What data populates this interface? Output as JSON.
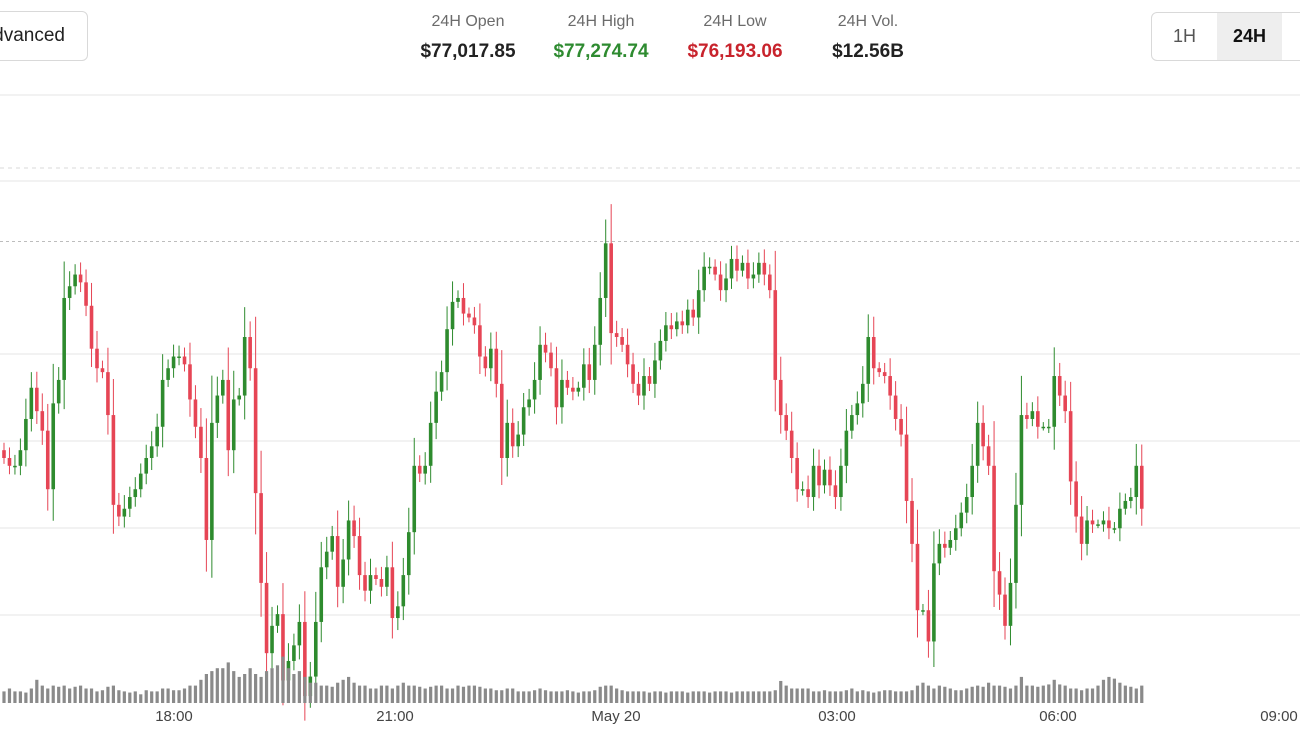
{
  "header": {
    "advanced_label": "Advanced",
    "stats": [
      {
        "label": "24H Open",
        "value": "$77,017.85",
        "color": "#222222"
      },
      {
        "label": "24H High",
        "value": "$77,274.74",
        "color": "#2e8b30"
      },
      {
        "label": "24H Low",
        "value": "$76,193.06",
        "color": "#c8232c"
      },
      {
        "label": "24H Vol.",
        "value": "$12.56B",
        "color": "#222222"
      }
    ],
    "ranges": [
      {
        "label": "1H",
        "active": false
      },
      {
        "label": "24H",
        "active": true
      }
    ]
  },
  "colors": {
    "up": "#2e8b2e",
    "down": "#e64555",
    "volume": "#8a8a8a",
    "grid": "#e6e6e6"
  },
  "chart_data": {
    "type": "candlestick",
    "x_axis_labels": [
      "18:00",
      "21:00",
      "May 20",
      "03:00",
      "06:00",
      "09:00"
    ],
    "y_range": [
      76100,
      77650
    ],
    "reference_lines": [
      77274.74
    ],
    "candles_per_hour": 12,
    "price_closes": [
      76720,
      76700,
      76700,
      76740,
      76820,
      76900,
      76840,
      76790,
      76640,
      76860,
      76920,
      77130,
      77160,
      77190,
      77170,
      77110,
      77000,
      76950,
      76940,
      76830,
      76600,
      76570,
      76590,
      76620,
      76640,
      76680,
      76720,
      76750,
      76800,
      76920,
      76950,
      76980,
      76980,
      76960,
      76870,
      76800,
      76720,
      76510,
      76810,
      76880,
      76920,
      76740,
      76870,
      76880,
      77030,
      76950,
      76630,
      76400,
      76220,
      76290,
      76320,
      76150,
      76200,
      76240,
      76300,
      76110,
      76160,
      76300,
      76440,
      76480,
      76520,
      76390,
      76460,
      76560,
      76520,
      76420,
      76380,
      76420,
      76410,
      76390,
      76440,
      76310,
      76340,
      76420,
      76530,
      76700,
      76680,
      76700,
      76810,
      76890,
      76940,
      77050,
      77120,
      77130,
      77090,
      77080,
      77060,
      76980,
      76950,
      77000,
      76910,
      76720,
      76810,
      76750,
      76780,
      76850,
      76870,
      76920,
      77010,
      76990,
      76950,
      76850,
      76920,
      76900,
      76890,
      76900,
      76960,
      76920,
      77010,
      77130,
      77270,
      77040,
      77030,
      77010,
      76960,
      76910,
      76880,
      76930,
      76910,
      76970,
      77020,
      77060,
      77050,
      77070,
      77060,
      77100,
      77080,
      77150,
      77210,
      77210,
      77190,
      77150,
      77180,
      77230,
      77200,
      77220,
      77180,
      77190,
      77220,
      77190,
      77150,
      76920,
      76830,
      76790,
      76720,
      76640,
      76640,
      76620,
      76700,
      76650,
      76690,
      76650,
      76620,
      76700,
      76790,
      76830,
      76860,
      76910,
      77030,
      76950,
      76940,
      76930,
      76880,
      76820,
      76780,
      76610,
      76500,
      76330,
      76330,
      76250,
      76450,
      76500,
      76490,
      76510,
      76540,
      76580,
      76620,
      76700,
      76810,
      76750,
      76700,
      76430,
      76370,
      76290,
      76400,
      76600,
      76830,
      76820,
      76840,
      76800,
      76800,
      76800,
      76930,
      76880,
      76840,
      76660,
      76570,
      76500,
      76560,
      76550,
      76550,
      76560,
      76540,
      76540,
      76590,
      76610,
      76620,
      76700,
      76590
    ],
    "volume_levels": [
      0.2,
      0.25,
      0.2,
      0.2,
      0.18,
      0.25,
      0.4,
      0.3,
      0.25,
      0.3,
      0.28,
      0.3,
      0.25,
      0.28,
      0.3,
      0.25,
      0.25,
      0.2,
      0.22,
      0.28,
      0.3,
      0.22,
      0.2,
      0.18,
      0.2,
      0.15,
      0.22,
      0.2,
      0.2,
      0.25,
      0.25,
      0.22,
      0.22,
      0.25,
      0.3,
      0.3,
      0.4,
      0.5,
      0.55,
      0.6,
      0.6,
      0.7,
      0.55,
      0.45,
      0.5,
      0.6,
      0.5,
      0.45,
      0.55,
      0.6,
      0.65,
      0.8,
      0.6,
      0.5,
      0.55,
      0.45,
      0.35,
      0.35,
      0.3,
      0.3,
      0.28,
      0.35,
      0.4,
      0.45,
      0.35,
      0.3,
      0.3,
      0.25,
      0.25,
      0.3,
      0.3,
      0.25,
      0.3,
      0.35,
      0.3,
      0.3,
      0.28,
      0.25,
      0.28,
      0.3,
      0.3,
      0.25,
      0.25,
      0.3,
      0.28,
      0.3,
      0.3,
      0.28,
      0.25,
      0.25,
      0.22,
      0.22,
      0.25,
      0.25,
      0.2,
      0.2,
      0.2,
      0.22,
      0.25,
      0.22,
      0.2,
      0.2,
      0.2,
      0.22,
      0.2,
      0.18,
      0.2,
      0.2,
      0.22,
      0.28,
      0.3,
      0.3,
      0.25,
      0.22,
      0.2,
      0.2,
      0.2,
      0.2,
      0.18,
      0.2,
      0.2,
      0.18,
      0.2,
      0.2,
      0.2,
      0.18,
      0.2,
      0.2,
      0.2,
      0.18,
      0.2,
      0.2,
      0.2,
      0.18,
      0.2,
      0.2,
      0.2,
      0.2,
      0.2,
      0.2,
      0.2,
      0.22,
      0.38,
      0.3,
      0.25,
      0.25,
      0.25,
      0.25,
      0.2,
      0.2,
      0.22,
      0.2,
      0.2,
      0.2,
      0.22,
      0.25,
      0.2,
      0.22,
      0.2,
      0.18,
      0.2,
      0.22,
      0.22,
      0.2,
      0.2,
      0.2,
      0.22,
      0.3,
      0.35,
      0.3,
      0.25,
      0.3,
      0.28,
      0.25,
      0.22,
      0.22,
      0.25,
      0.28,
      0.3,
      0.28,
      0.35,
      0.3,
      0.3,
      0.28,
      0.25,
      0.3,
      0.45,
      0.3,
      0.3,
      0.28,
      0.3,
      0.32,
      0.4,
      0.32,
      0.3,
      0.25,
      0.25,
      0.22,
      0.25,
      0.25,
      0.3,
      0.4,
      0.45,
      0.42,
      0.35,
      0.3,
      0.28,
      0.25,
      0.3
    ]
  }
}
